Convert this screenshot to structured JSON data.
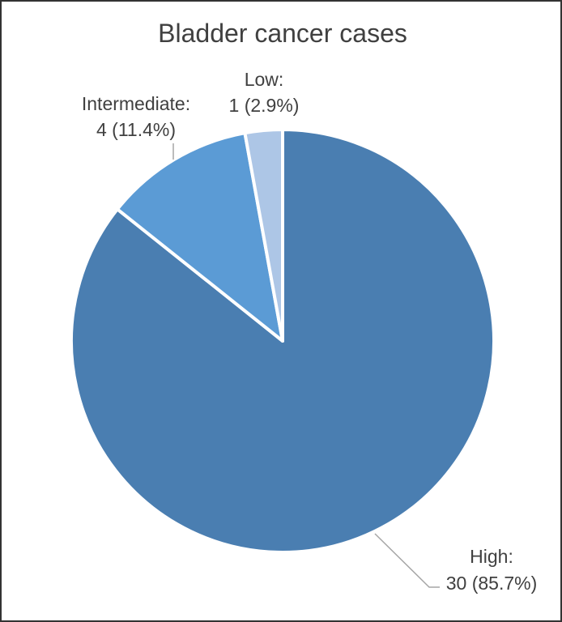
{
  "chart_data": {
    "type": "pie",
    "title": "Bladder cancer cases",
    "start_angle_deg": 0,
    "direction": "clockwise",
    "slices": [
      {
        "label": "High",
        "value": 30,
        "percent_label": "30 (85.7%)",
        "color": "#4a7eb1"
      },
      {
        "label": "Intermediate",
        "value": 4,
        "percent_label": "4 (11.4%)",
        "color": "#5b9bd5"
      },
      {
        "label": "Low",
        "value": 1,
        "percent_label": "1 (2.9%)",
        "color": "#adc6e6"
      }
    ]
  }
}
